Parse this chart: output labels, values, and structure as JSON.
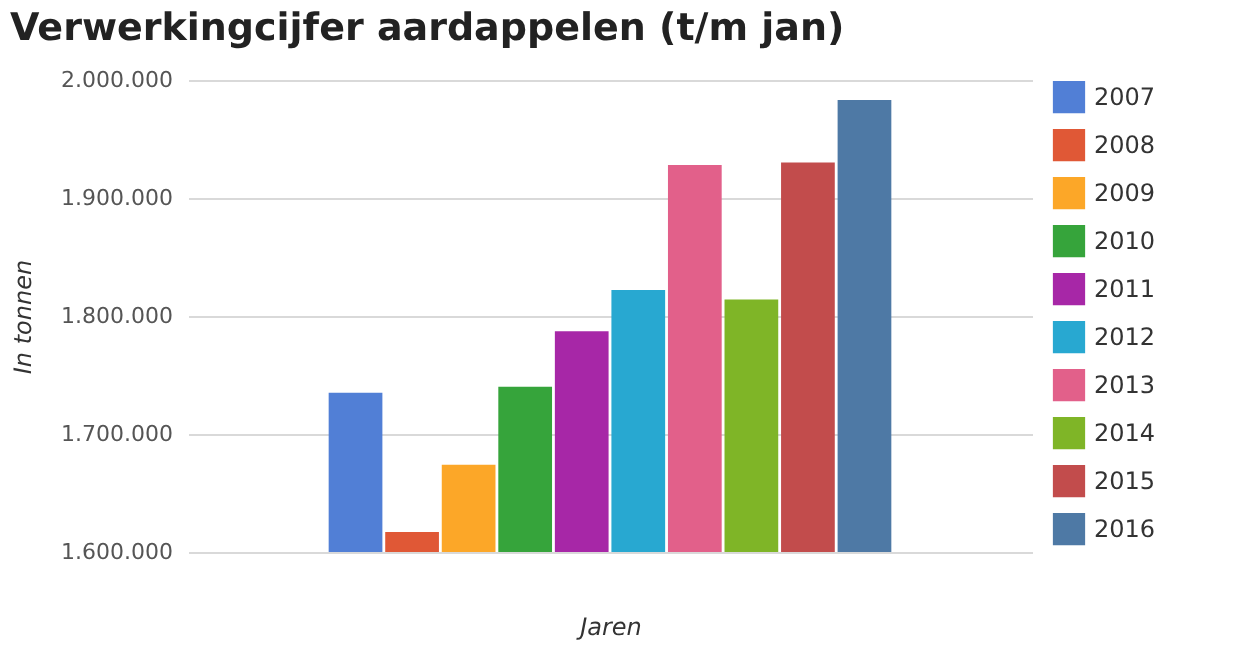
{
  "chart_data": {
    "type": "bar",
    "title": "Verwerkingcijfer aardappelen (t/m jan)",
    "xlabel": "Jaren",
    "ylabel": "In tonnen",
    "categories": [
      null
    ],
    "series": [
      {
        "name": "2007",
        "color": "#517fd6",
        "values": [
          1735000
        ]
      },
      {
        "name": "2008",
        "color": "#e05836",
        "values": [
          1617000
        ]
      },
      {
        "name": "2009",
        "color": "#fca728",
        "values": [
          1674000
        ]
      },
      {
        "name": "2010",
        "color": "#36a43b",
        "values": [
          1740000
        ]
      },
      {
        "name": "2011",
        "color": "#a727a7",
        "values": [
          1787000
        ]
      },
      {
        "name": "2012",
        "color": "#28a8d1",
        "values": [
          1822000
        ]
      },
      {
        "name": "2013",
        "color": "#e2608a",
        "values": [
          1928000
        ]
      },
      {
        "name": "2014",
        "color": "#7fb527",
        "values": [
          1814000
        ]
      },
      {
        "name": "2015",
        "color": "#c24c4c",
        "values": [
          1930000
        ]
      },
      {
        "name": "2016",
        "color": "#4e79a5",
        "values": [
          1983000
        ]
      }
    ],
    "ylim": [
      1600000,
      2000000
    ],
    "yticks": [
      {
        "value": 1600000,
        "label": "1.600.000"
      },
      {
        "value": 1700000,
        "label": "1.700.000"
      },
      {
        "value": 1800000,
        "label": "1.800.000"
      },
      {
        "value": 1900000,
        "label": "1.900.000"
      },
      {
        "value": 2000000,
        "label": "2.000.000"
      }
    ],
    "grid": "y",
    "legend": "right"
  }
}
